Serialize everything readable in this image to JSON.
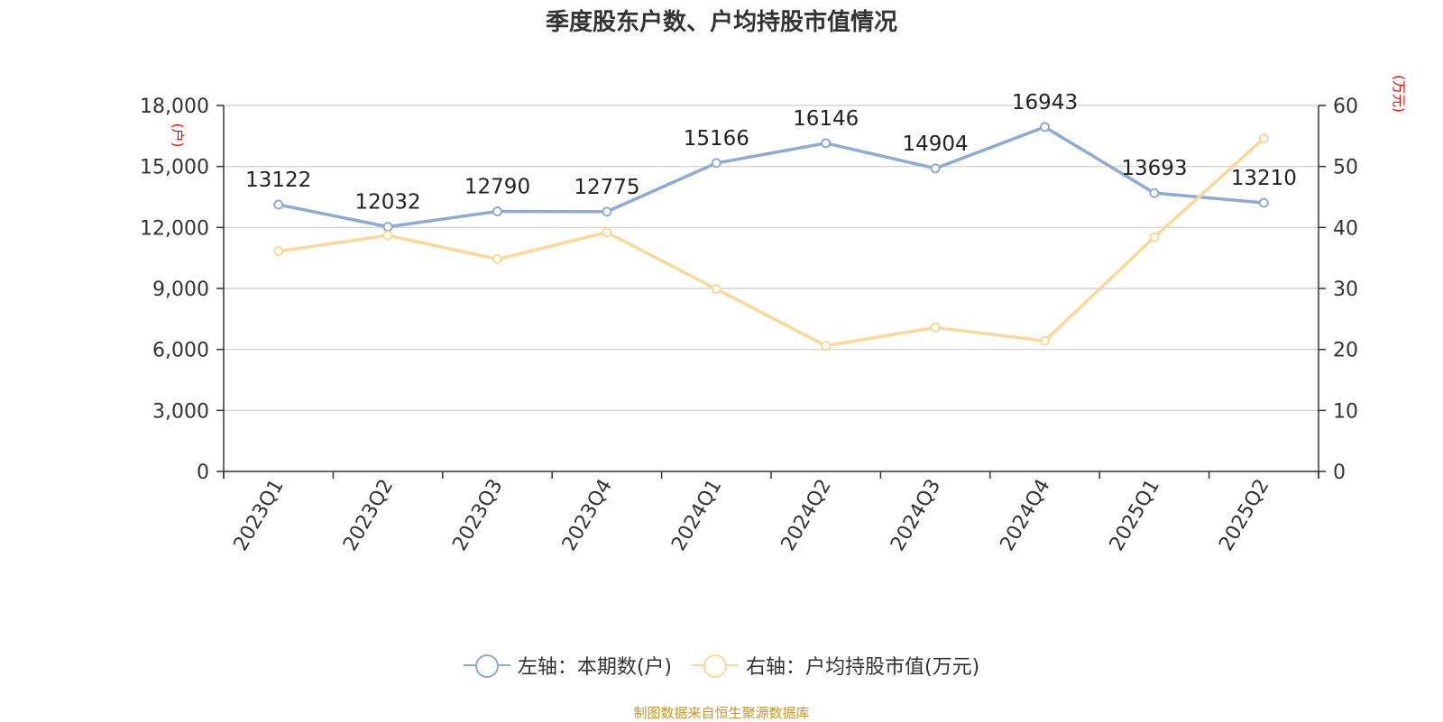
{
  "title": "季度股东户数、户均持股市值情况",
  "source": "制图数据来自恒生聚源数据库",
  "chart_data": {
    "type": "line",
    "title": "季度股东户数、户均持股市值情况",
    "categories": [
      "2023Q1",
      "2023Q2",
      "2023Q3",
      "2023Q4",
      "2024Q1",
      "2024Q2",
      "2024Q3",
      "2024Q4",
      "2025Q1",
      "2025Q2"
    ],
    "left_axis": {
      "label": "(户)",
      "min": 0,
      "max": 18000,
      "ticks": [
        "0",
        "3,000",
        "6,000",
        "9,000",
        "12,000",
        "15,000",
        "18,000"
      ],
      "tick_values": [
        0,
        3000,
        6000,
        9000,
        12000,
        15000,
        18000
      ]
    },
    "right_axis": {
      "label": "(万元)",
      "min": 0,
      "max": 60,
      "ticks": [
        "0",
        "10",
        "20",
        "30",
        "40",
        "50",
        "60"
      ],
      "tick_values": [
        0,
        10,
        20,
        30,
        40,
        50,
        60
      ]
    },
    "grid": true,
    "legend_position": "bottom",
    "series": [
      {
        "name": "左轴：本期数(户)",
        "axis": "left",
        "color": "#8eaad6",
        "values": [
          13122,
          12032,
          12790,
          12775,
          15166,
          16146,
          14904,
          16943,
          13693,
          13210
        ],
        "labels": [
          "13122",
          "12032",
          "12790",
          "12775",
          "15166",
          "16146",
          "14904",
          "16943",
          "13693",
          "13210"
        ]
      },
      {
        "name": "右轴：户均持股市值(万元)",
        "axis": "right",
        "color": "#fbd898",
        "values": [
          36.1,
          38.7,
          34.8,
          39.2,
          29.9,
          20.6,
          23.6,
          21.4,
          38.4,
          54.6
        ]
      }
    ]
  }
}
